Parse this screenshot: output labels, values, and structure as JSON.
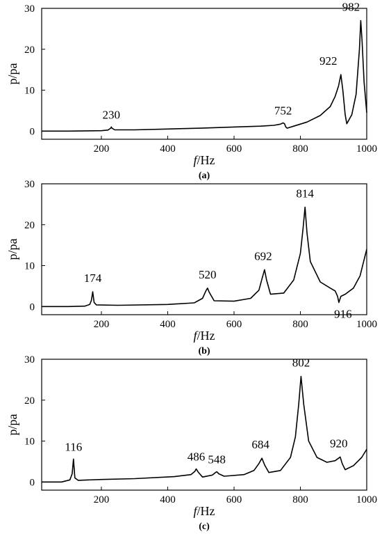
{
  "chart_data": [
    {
      "type": "line",
      "panel_label": "(a)",
      "xlabel_italic": "f",
      "xlabel_unit": "/Hz",
      "ylabel": "p/pa",
      "xlim": [
        20,
        1000
      ],
      "ylim": [
        -2,
        30
      ],
      "xticks": [
        200,
        400,
        600,
        800,
        1000
      ],
      "yticks": [
        0,
        10,
        20,
        30
      ],
      "peaks": [
        {
          "f": 230,
          "p": 1.0,
          "label": "230"
        },
        {
          "f": 752,
          "p": 2.0,
          "label": "752"
        },
        {
          "f": 922,
          "p": 13.8,
          "label": "922"
        },
        {
          "f": 982,
          "p": 27.0,
          "label": "982"
        }
      ],
      "series": [
        {
          "x": [
            20,
            100,
            200,
            220,
            228,
            230,
            232,
            240,
            300,
            400,
            500,
            600,
            680,
            720,
            740,
            748,
            752,
            756,
            760,
            780,
            820,
            860,
            890,
            905,
            915,
            922,
            928,
            935,
            940,
            955,
            968,
            978,
            982,
            986,
            992,
            1000
          ],
          "y": [
            0,
            0,
            0.1,
            0.25,
            0.7,
            1.0,
            0.7,
            0.3,
            0.3,
            0.5,
            0.7,
            1.0,
            1.2,
            1.4,
            1.7,
            2.0,
            1.8,
            1.0,
            0.7,
            1.2,
            2.2,
            3.8,
            6.0,
            8.5,
            11.0,
            13.8,
            10.0,
            4.0,
            1.8,
            4.0,
            9.0,
            20.0,
            27.0,
            22.0,
            12.0,
            4.5
          ]
        }
      ]
    },
    {
      "type": "line",
      "panel_label": "(b)",
      "xlabel_italic": "f",
      "xlabel_unit": "/Hz",
      "ylabel": "p/pa",
      "xlim": [
        20,
        1000
      ],
      "ylim": [
        -2,
        30
      ],
      "xticks": [
        200,
        400,
        600,
        800,
        1000
      ],
      "yticks": [
        0,
        10,
        20,
        30
      ],
      "peaks": [
        {
          "f": 174,
          "p": 3.6,
          "label": "174"
        },
        {
          "f": 520,
          "p": 4.5,
          "label": "520"
        },
        {
          "f": 692,
          "p": 9.0,
          "label": "692"
        },
        {
          "f": 814,
          "p": 24.3,
          "label": "814"
        },
        {
          "f": 916,
          "p": 1.0,
          "label": "916"
        }
      ],
      "series": [
        {
          "x": [
            20,
            100,
            150,
            165,
            170,
            174,
            178,
            185,
            250,
            400,
            480,
            505,
            515,
            520,
            525,
            540,
            600,
            650,
            675,
            685,
            692,
            698,
            710,
            750,
            780,
            800,
            808,
            814,
            820,
            830,
            860,
            890,
            905,
            912,
            916,
            922,
            935,
            960,
            980,
            1000
          ],
          "y": [
            0,
            0,
            0.1,
            0.5,
            1.5,
            3.6,
            1.0,
            0.4,
            0.3,
            0.5,
            0.9,
            2.0,
            3.8,
            4.5,
            3.5,
            1.4,
            1.3,
            2.0,
            4.0,
            7.0,
            9.0,
            6.5,
            3.0,
            3.3,
            6.5,
            13.0,
            19.0,
            24.3,
            18.0,
            11.0,
            6.0,
            4.5,
            3.8,
            2.5,
            1.0,
            2.5,
            3.0,
            4.5,
            7.5,
            14.0
          ]
        }
      ]
    },
    {
      "type": "line",
      "panel_label": "(c)",
      "xlabel_italic": "f",
      "xlabel_unit": "/Hz",
      "ylabel": "p/pa",
      "xlim": [
        20,
        1000
      ],
      "ylim": [
        -2,
        30
      ],
      "xticks": [
        200,
        400,
        600,
        800,
        1000
      ],
      "yticks": [
        0,
        10,
        20,
        30
      ],
      "peaks": [
        {
          "f": 116,
          "p": 5.6,
          "label": "116"
        },
        {
          "f": 486,
          "p": 3.2,
          "label": "486"
        },
        {
          "f": 548,
          "p": 2.5,
          "label": "548"
        },
        {
          "f": 684,
          "p": 5.8,
          "label": "684"
        },
        {
          "f": 802,
          "p": 25.8,
          "label": "802"
        },
        {
          "f": 920,
          "p": 6.1,
          "label": "920"
        }
      ],
      "series": [
        {
          "x": [
            20,
            80,
            105,
            112,
            116,
            120,
            130,
            200,
            300,
            420,
            470,
            482,
            486,
            492,
            505,
            535,
            544,
            548,
            554,
            570,
            630,
            660,
            675,
            684,
            692,
            705,
            740,
            770,
            785,
            795,
            802,
            810,
            825,
            850,
            880,
            905,
            915,
            920,
            926,
            935,
            960,
            985,
            1000
          ],
          "y": [
            0,
            0,
            0.5,
            2.0,
            5.6,
            1.0,
            0.4,
            0.6,
            0.8,
            1.3,
            1.8,
            2.6,
            3.2,
            2.4,
            1.2,
            1.7,
            2.3,
            2.5,
            2.0,
            1.4,
            1.8,
            2.8,
            4.5,
            5.8,
            4.2,
            2.3,
            2.8,
            6.0,
            11.0,
            19.0,
            25.8,
            19.0,
            10.0,
            6.0,
            4.8,
            5.2,
            5.8,
            6.1,
            4.5,
            3.0,
            4.0,
            6.0,
            8.0
          ]
        }
      ]
    }
  ]
}
